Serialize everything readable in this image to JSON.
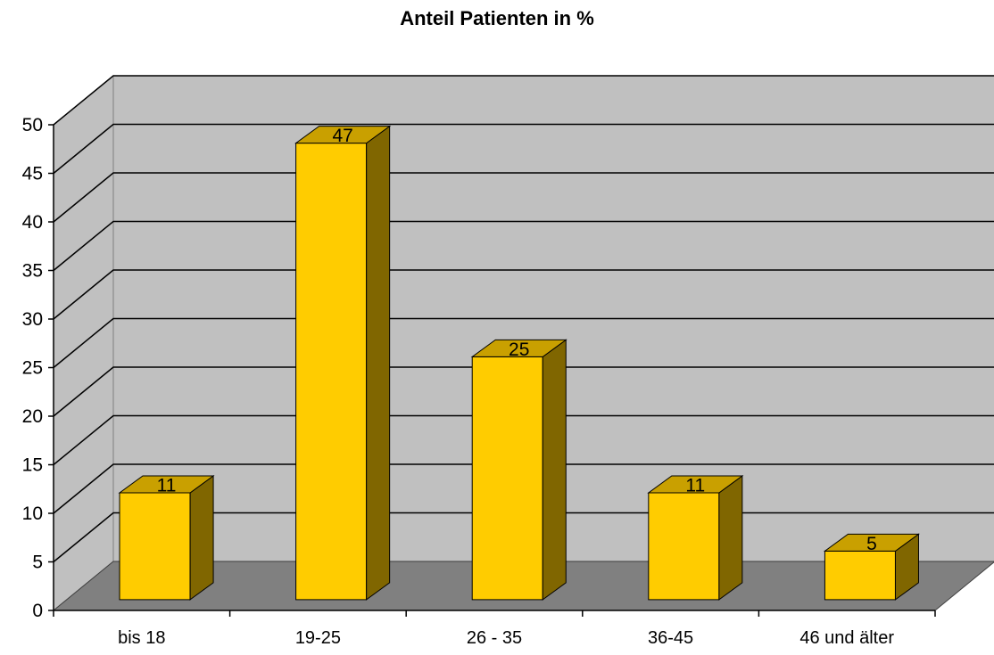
{
  "chart_data": {
    "type": "bar",
    "title": "Anteil Patienten in %",
    "categories": [
      "bis 18",
      "19-25",
      "26 - 35",
      "36-45",
      "46 und älter"
    ],
    "values": [
      11,
      47,
      25,
      11,
      5
    ],
    "ylim": [
      0,
      50
    ],
    "yticks": [
      0,
      5,
      10,
      15,
      20,
      25,
      30,
      35,
      40,
      45,
      50
    ],
    "xlabel": "",
    "ylabel": "",
    "grid": true,
    "legend": "none",
    "style": "3d-column",
    "colors": {
      "bar_front": "#FFCC00",
      "bar_top": "#C9A000",
      "bar_side": "#806600",
      "back_wall": "#C0C0C0",
      "side_wall": "#C0C0C0",
      "floor": "#808080",
      "gridline": "#000000"
    }
  }
}
